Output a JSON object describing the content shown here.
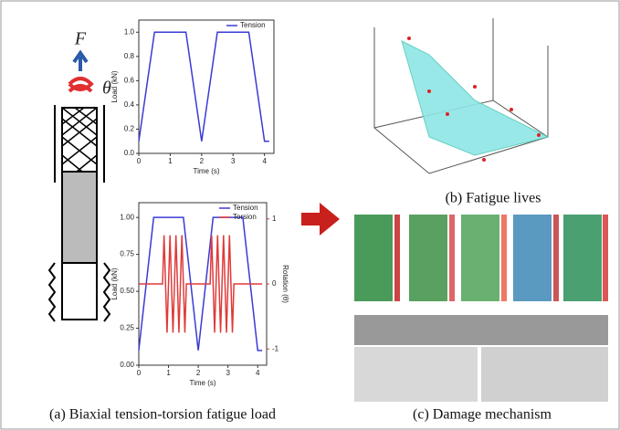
{
  "captions": {
    "a": "(a) Biaxial tension-torsion fatigue load",
    "b": "(b) Fatigue lives",
    "c": "(c) Damage mechanism"
  },
  "specimen": {
    "force_label": "F",
    "angle_label": "θ"
  },
  "chart_data": [
    {
      "type": "line",
      "xlabel": "Time (s)",
      "ylabel": "Load (kN)",
      "xlim": [
        0,
        4.3
      ],
      "xticks": [
        0,
        1,
        2,
        3,
        4
      ],
      "ylim": [
        0,
        1.1
      ],
      "yticks": [
        {
          "value": 0,
          "label": "0.0"
        },
        0.2,
        0.4,
        0.6,
        0.8,
        {
          "value": 1,
          "label": "1.0"
        }
      ],
      "series": [
        {
          "name": "Tension",
          "color": "#3a3ad6",
          "x": [
            0,
            0.5,
            1.5,
            2,
            2.5,
            3.5,
            4,
            4.15
          ],
          "values": [
            0.1,
            1.0,
            1.0,
            0.1,
            1.0,
            1.0,
            0.1,
            0.1
          ]
        }
      ]
    },
    {
      "type": "line",
      "xlabel": "Time (s)",
      "ylabel": "Load (kN)",
      "y2label": "Rotation (θ)",
      "xlim": [
        0,
        4.3
      ],
      "xticks": [
        0,
        1,
        2,
        3,
        4
      ],
      "ylim": [
        0,
        1.1
      ],
      "yticks": [
        {
          "value": 0,
          "label": "0.00"
        },
        0.25,
        {
          "value": 0.5,
          "label": "0.50"
        },
        0.75,
        {
          "value": 1,
          "label": "1.00"
        }
      ],
      "y2lim": [
        -1.25,
        1.25
      ],
      "y2ticks": [
        -1,
        0,
        1
      ],
      "series": [
        {
          "name": "Tension",
          "color": "#3a3ad6",
          "x": [
            0,
            0.5,
            1.5,
            2,
            2.5,
            3.5,
            4,
            4.15
          ],
          "values": [
            0.1,
            1.0,
            1.0,
            0.1,
            1.0,
            1.0,
            0.1,
            0.1
          ]
        },
        {
          "name": "Torsion",
          "color": "#e03a3a",
          "axis": "y2",
          "x": [
            0,
            0.8,
            0.85,
            0.95,
            1.05,
            1.15,
            1.25,
            1.35,
            1.45,
            1.55,
            1.6,
            2.4,
            2.45,
            2.55,
            2.65,
            2.75,
            2.85,
            2.95,
            3.05,
            3.15,
            3.2,
            4.15
          ],
          "values": [
            0,
            0,
            0.75,
            -0.75,
            0.75,
            -0.75,
            0.75,
            -0.75,
            0.75,
            -0.75,
            0,
            0,
            0.75,
            -0.75,
            0.75,
            -0.75,
            0.75,
            -0.75,
            0.75,
            -0.75,
            0,
            0
          ]
        }
      ]
    }
  ]
}
